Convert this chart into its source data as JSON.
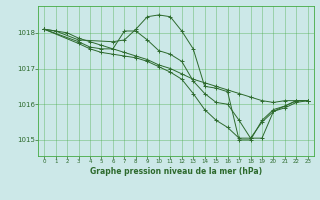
{
  "background_color": "#cce8e8",
  "plot_bg_color": "#cce8e8",
  "grid_color": "#44aa44",
  "line_color": "#2d6a2d",
  "title": "Graphe pression niveau de la mer (hPa)",
  "title_color": "#2d6a2d",
  "xlim": [
    -0.5,
    23.5
  ],
  "ylim": [
    1014.55,
    1018.75
  ],
  "yticks": [
    1015,
    1016,
    1017,
    1018
  ],
  "xticks": [
    0,
    1,
    2,
    3,
    4,
    5,
    6,
    7,
    8,
    9,
    10,
    11,
    12,
    13,
    14,
    15,
    16,
    17,
    18,
    19,
    20,
    21,
    22,
    23
  ],
  "series": [
    {
      "x": [
        0,
        1,
        2,
        3,
        4,
        5,
        6,
        7,
        8,
        9,
        10,
        11,
        12,
        13,
        14,
        15,
        16,
        17,
        18,
        19,
        20,
        21,
        22,
        23
      ],
      "y": [
        1018.1,
        1018.05,
        1018.0,
        1017.85,
        1017.75,
        1017.65,
        1017.55,
        1017.45,
        1017.35,
        1017.25,
        1017.1,
        1017.0,
        1016.85,
        1016.7,
        1016.6,
        1016.5,
        1016.4,
        1016.3,
        1016.2,
        1016.1,
        1016.05,
        1016.1,
        1016.1,
        1016.1
      ]
    },
    {
      "x": [
        0,
        1,
        3,
        6,
        7,
        8,
        9,
        10,
        11,
        12,
        13,
        14,
        15,
        16,
        17,
        18,
        19,
        20,
        21,
        22,
        23
      ],
      "y": [
        1018.1,
        1018.05,
        1017.8,
        1017.75,
        1017.8,
        1018.1,
        1018.45,
        1018.5,
        1018.45,
        1018.05,
        1017.55,
        1016.5,
        1016.45,
        1016.35,
        1015.0,
        1015.0,
        1015.55,
        1015.85,
        1015.95,
        1016.1,
        1016.1
      ]
    },
    {
      "x": [
        0,
        3,
        4,
        5,
        6,
        7,
        8,
        9,
        10,
        11,
        12,
        13,
        14,
        15,
        16,
        17,
        18,
        19,
        20,
        21,
        22,
        23
      ],
      "y": [
        1018.1,
        1017.75,
        1017.6,
        1017.55,
        1017.55,
        1018.05,
        1018.05,
        1017.8,
        1017.5,
        1017.4,
        1017.2,
        1016.65,
        1016.3,
        1016.05,
        1016.0,
        1015.55,
        1015.05,
        1015.05,
        1015.8,
        1015.95,
        1016.1,
        1016.1
      ]
    },
    {
      "x": [
        0,
        3,
        4,
        5,
        6,
        7,
        8,
        9,
        10,
        11,
        12,
        13,
        14,
        15,
        16,
        17,
        18,
        19,
        20,
        21,
        22,
        23
      ],
      "y": [
        1018.1,
        1017.7,
        1017.55,
        1017.45,
        1017.4,
        1017.35,
        1017.3,
        1017.2,
        1017.05,
        1016.9,
        1016.7,
        1016.3,
        1015.85,
        1015.55,
        1015.35,
        1015.05,
        1015.05,
        1015.5,
        1015.8,
        1015.9,
        1016.05,
        1016.1
      ]
    }
  ]
}
